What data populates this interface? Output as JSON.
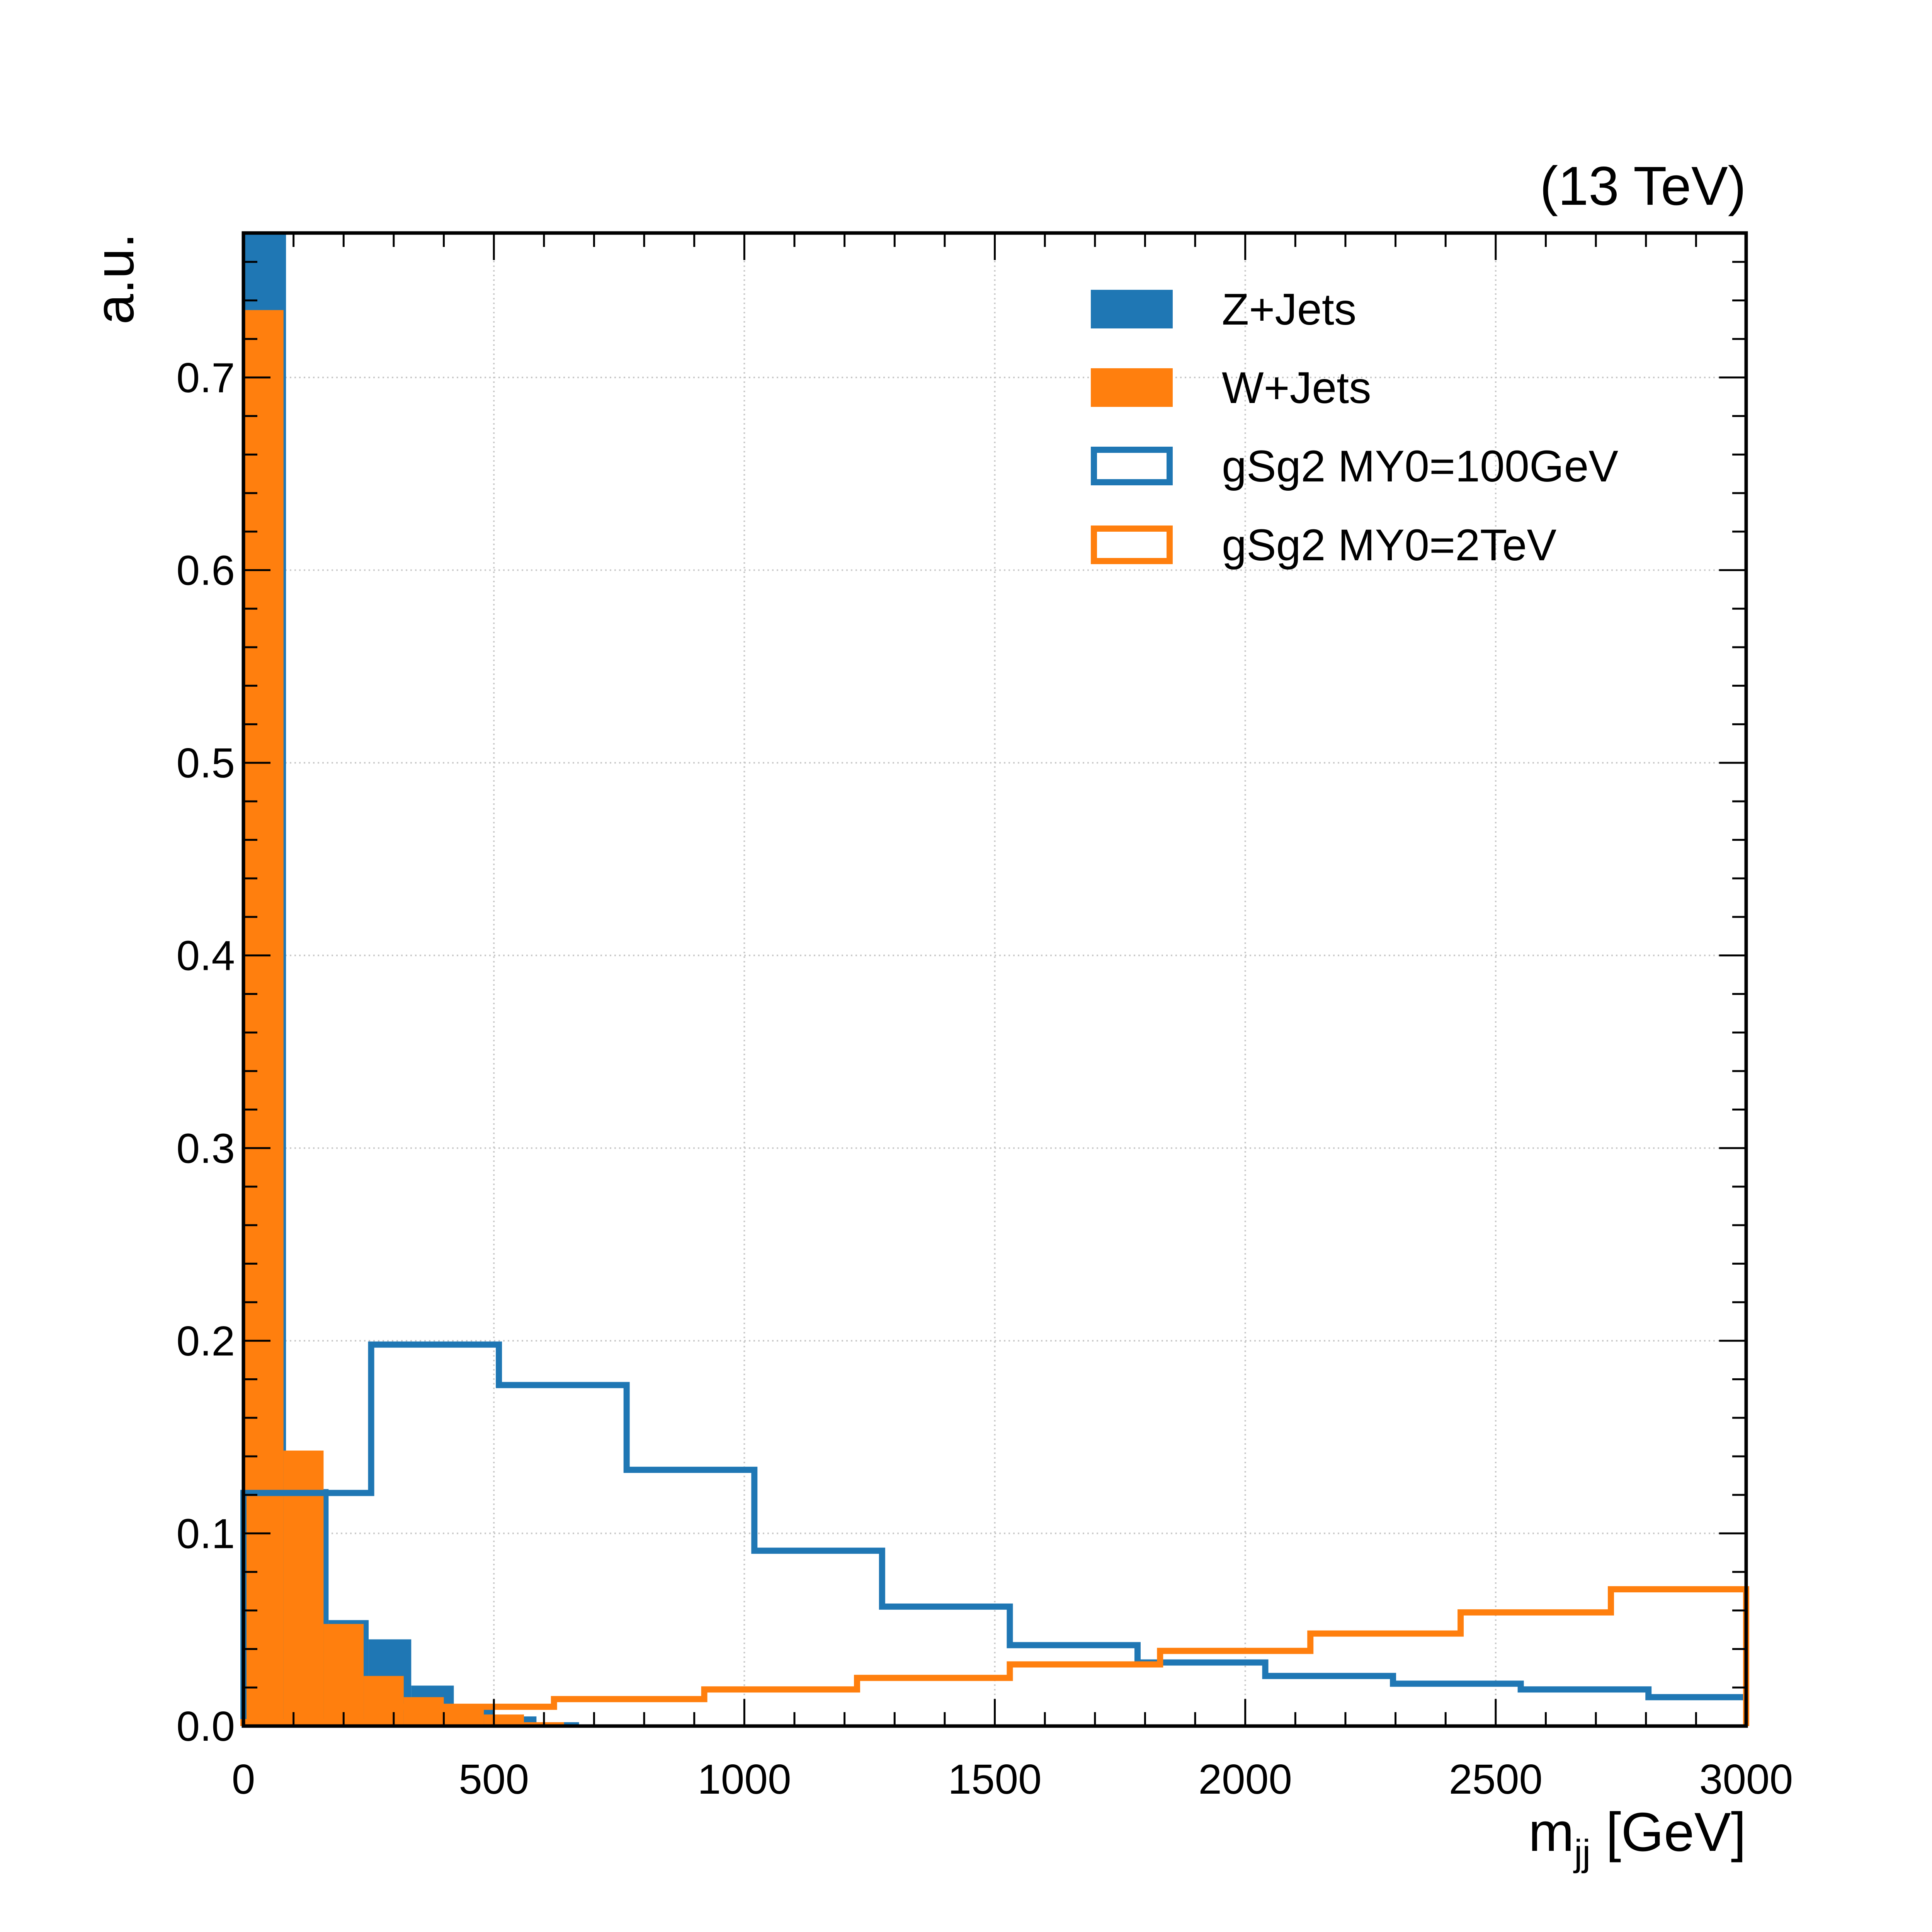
{
  "chart_data": {
    "type": "histogram",
    "energy_label": "(13 TeV)",
    "xlabel": {
      "main": "m",
      "sub": "jj",
      "unit": " [GeV]"
    },
    "ylabel": "a.u.",
    "xlim": [
      0,
      3000
    ],
    "ylim": [
      0,
      0.775
    ],
    "x_ticks": [
      0,
      500,
      1000,
      1500,
      2000,
      2500,
      3000
    ],
    "x_tick_labels": [
      "0",
      "500",
      "1000",
      "1500",
      "2000",
      "2500",
      "3000"
    ],
    "y_ticks": [
      0.0,
      0.1,
      0.2,
      0.3,
      0.4,
      0.5,
      0.6,
      0.7
    ],
    "y_tick_labels": [
      "0.0",
      "0.1",
      "0.2",
      "0.3",
      "0.4",
      "0.5",
      "0.6",
      "0.7"
    ],
    "grid": true,
    "legend_position": "top-right",
    "series": [
      {
        "name": "Z+Jets",
        "style": "filled",
        "color": "#1f77b4",
        "bin_edges": [
          0,
          85,
          170,
          250,
          335,
          420,
          500,
          585,
          670
        ],
        "values": [
          0.775,
          0.123,
          0.055,
          0.045,
          0.021,
          0.01,
          0.005,
          0.002
        ]
      },
      {
        "name": "W+Jets",
        "style": "filled",
        "color": "#ff7f0e",
        "bin_edges": [
          0,
          80,
          160,
          240,
          320,
          400,
          480,
          560,
          640
        ],
        "values": [
          0.735,
          0.143,
          0.053,
          0.026,
          0.015,
          0.01,
          0.006,
          0.002
        ]
      },
      {
        "name": "gSg2 MY0=100GeV",
        "style": "step",
        "color": "#1f77b4",
        "bin_edges": [
          0,
          255,
          510,
          765,
          1020,
          1275,
          1530,
          1785,
          2040,
          2295,
          2550,
          2805,
          3000
        ],
        "values": [
          0.121,
          0.198,
          0.177,
          0.133,
          0.091,
          0.062,
          0.042,
          0.033,
          0.026,
          0.022,
          0.019,
          0.015
        ]
      },
      {
        "name": "gSg2 MY0=2TeV",
        "style": "step",
        "color": "#ff7f0e",
        "bin_edges": [
          0,
          310,
          620,
          920,
          1225,
          1530,
          1830,
          2130,
          2430,
          2730,
          3000
        ],
        "values": [
          0.002,
          0.01,
          0.014,
          0.019,
          0.025,
          0.032,
          0.039,
          0.048,
          0.059,
          0.071
        ]
      }
    ]
  }
}
